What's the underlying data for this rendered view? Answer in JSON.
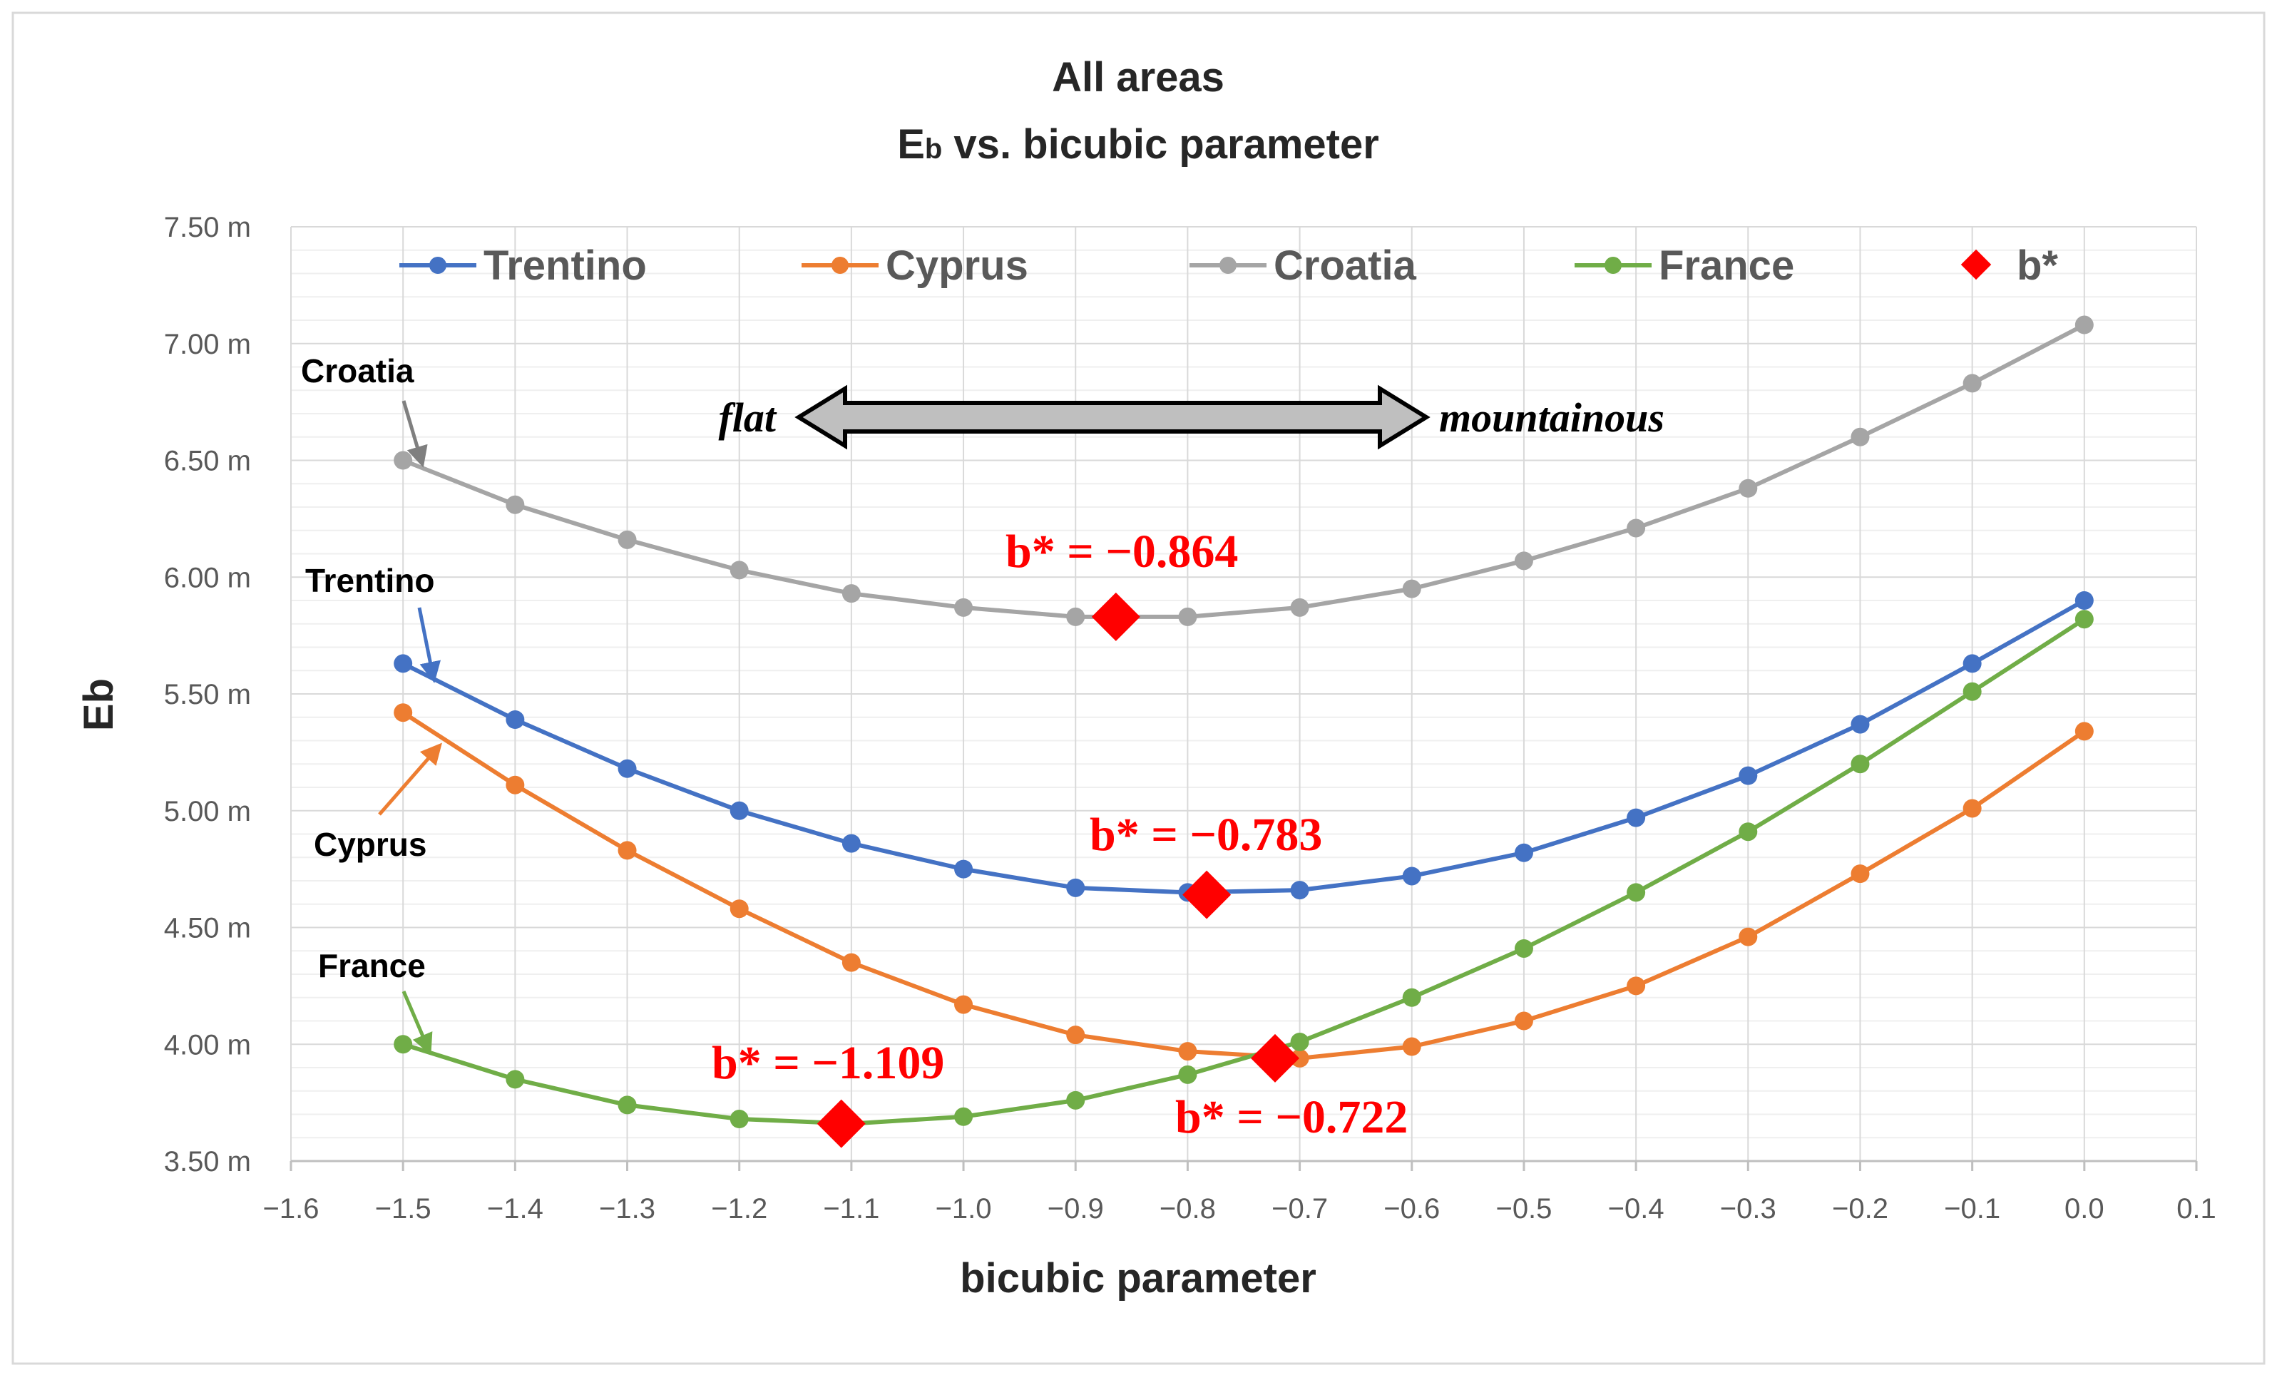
{
  "chart_data": {
    "type": "line",
    "title": "All areas",
    "subtitle_main": "E",
    "subtitle_sub": "b",
    "subtitle_rest": " vs. bicubic parameter",
    "xlabel": "bicubic parameter",
    "ylabel": "Eb",
    "xlim": [
      -1.6,
      0.1
    ],
    "ylim": [
      3.5,
      7.5
    ],
    "x_ticks": [
      "−1.6",
      "−1.5",
      "−1.4",
      "−1.3",
      "−1.2",
      "−1.1",
      "−1.0",
      "−0.9",
      "−0.8",
      "−0.7",
      "−0.6",
      "−0.5",
      "−0.4",
      "−0.3",
      "−0.2",
      "−0.1",
      "0.0",
      "0.1"
    ],
    "y_ticks": [
      "3.50 m",
      "4.00 m",
      "4.50 m",
      "5.00 m",
      "5.50 m",
      "6.00 m",
      "6.50 m",
      "7.00 m",
      "7.50 m"
    ],
    "grid": true,
    "legend_position": "top",
    "x": [
      -1.5,
      -1.4,
      -1.3,
      -1.2,
      -1.1,
      -1.0,
      -0.9,
      -0.8,
      -0.7,
      -0.6,
      -0.5,
      -0.4,
      -0.3,
      -0.2,
      -0.1,
      0.0
    ],
    "series": [
      {
        "name": "Trentino",
        "color": "#4472c4",
        "values": [
          5.63,
          5.39,
          5.18,
          5.0,
          4.86,
          4.75,
          4.67,
          4.65,
          4.66,
          4.72,
          4.82,
          4.97,
          5.15,
          5.37,
          5.63,
          5.9
        ]
      },
      {
        "name": "Cyprus",
        "color": "#ed7d31",
        "values": [
          5.42,
          5.11,
          4.83,
          4.58,
          4.35,
          4.17,
          4.04,
          3.97,
          3.94,
          3.99,
          4.1,
          4.25,
          4.46,
          4.73,
          5.01,
          5.34
        ]
      },
      {
        "name": "Croatia",
        "color": "#a5a5a5",
        "values": [
          6.5,
          6.31,
          6.16,
          6.03,
          5.93,
          5.87,
          5.83,
          5.83,
          5.87,
          5.95,
          6.07,
          6.21,
          6.38,
          6.6,
          6.83,
          7.08
        ]
      },
      {
        "name": "France",
        "color": "#70ad47",
        "values": [
          4.0,
          3.85,
          3.74,
          3.68,
          3.66,
          3.69,
          3.76,
          3.87,
          4.01,
          4.2,
          4.41,
          4.65,
          4.91,
          5.2,
          5.51,
          5.82
        ]
      }
    ],
    "optima": {
      "name": "b*",
      "color": "#ff0000",
      "points": [
        {
          "x": -0.864,
          "y": 5.83,
          "label": "b* = −0.864"
        },
        {
          "x": -0.783,
          "y": 4.64,
          "label": "b* = −0.783"
        },
        {
          "x": -0.722,
          "y": 3.94,
          "label": "b* = −0.722"
        },
        {
          "x": -1.109,
          "y": 3.66,
          "label": "b* = −1.109"
        }
      ]
    },
    "annotations": {
      "series_callouts": [
        "Croatia",
        "Trentino",
        "Cyprus",
        "France"
      ],
      "flat_label": "flat",
      "mountainous_label": "mountainous"
    }
  }
}
